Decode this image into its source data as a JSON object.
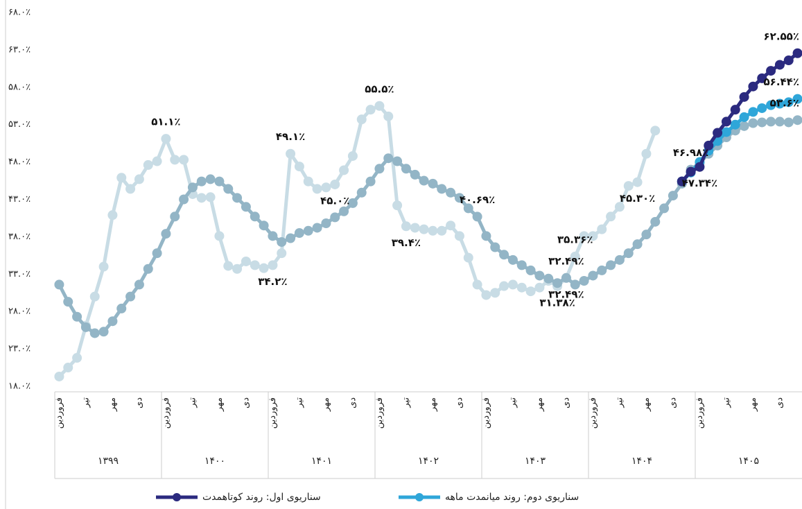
{
  "chart_data": {
    "type": "line",
    "categories": [
      "فروردین",
      null,
      null,
      "تیر",
      null,
      null,
      "مهر",
      null,
      null,
      "دی",
      null,
      null,
      "فروردین",
      null,
      null,
      "تیر",
      null,
      null,
      "مهر",
      null,
      null,
      "دی",
      null,
      null,
      "فروردین",
      null,
      null,
      "تیر",
      null,
      null,
      "مهر",
      null,
      null,
      "دی",
      null,
      null,
      "فروردین",
      null,
      null,
      "تیر",
      null,
      null,
      "مهر",
      null,
      null,
      "دی",
      null,
      null,
      "فروردین",
      null,
      null,
      "تیر",
      null,
      null,
      "مهر",
      null,
      null,
      "دی",
      null,
      null,
      "فروردین",
      null,
      null,
      "تیر",
      null,
      null,
      "مهر",
      null,
      null,
      "دی",
      null,
      null,
      "فروردین",
      null,
      null,
      "تیر",
      null,
      null,
      "مهر",
      null,
      null,
      "دی",
      null,
      null
    ],
    "year_groups": [
      "۱۳۹۹",
      "۱۴۰۰",
      "۱۴۰۱",
      "۱۴۰۲",
      "۱۴۰۳",
      "۱۴۰۴",
      "۱۴۰۵"
    ],
    "series": [
      {
        "color": "#c8dce5",
        "values": [
          19.3,
          20.5,
          21.8,
          26.1,
          30.0,
          34.0,
          40.9,
          45.9,
          44.4,
          45.7,
          47.6,
          48.1,
          51.1,
          48.3,
          48.3,
          43.7,
          43.2,
          43.3,
          38.1,
          34.1,
          33.7,
          34.7,
          34.2,
          33.8,
          34.2,
          35.8,
          49.1,
          47.4,
          45.4,
          44.4,
          44.6,
          45.0,
          46.9,
          48.8,
          53.7,
          55.0,
          55.5,
          54.1,
          42.2,
          39.4,
          39.2,
          39.0,
          38.8,
          38.8,
          39.5,
          38.1,
          35.2,
          31.6,
          30.2,
          30.5,
          31.4,
          31.6,
          31.2,
          30.7,
          31.2,
          32.1,
          31.38,
          32.49,
          35.36,
          38.1,
          38.1,
          39.0,
          40.7,
          42.0,
          44.8,
          45.3,
          49.1,
          52.2,
          null,
          null,
          null,
          null,
          null,
          null,
          null,
          null,
          null,
          null,
          null,
          null,
          null,
          null,
          null,
          null
        ],
        "value_labels": [
          null,
          null,
          null,
          null,
          null,
          null,
          null,
          null,
          null,
          null,
          null,
          null,
          "۵۱.۱٪",
          null,
          null,
          null,
          null,
          null,
          null,
          null,
          null,
          null,
          null,
          null,
          "۳۴.۲٪",
          null,
          "۴۹.۱٪",
          null,
          null,
          null,
          null,
          "۴۵.۰٪",
          null,
          null,
          null,
          null,
          "۵۵.۵٪",
          null,
          null,
          "۳۹.۴٪",
          null,
          null,
          null,
          null,
          null,
          null,
          null,
          null,
          null,
          null,
          null,
          null,
          null,
          null,
          null,
          null,
          "۳۱.۳۸٪",
          "۳۲.۴۹٪",
          "۳۵.۳۶٪",
          null,
          null,
          null,
          null,
          null,
          null,
          "۴۵.۳۰٪",
          null,
          null,
          null,
          null,
          null,
          null,
          null,
          null,
          null,
          null,
          null,
          null,
          null,
          null,
          null,
          null,
          null,
          null
        ]
      },
      {
        "color": "#93b5c6",
        "values": [
          31.6,
          29.3,
          27.3,
          25.9,
          25.1,
          25.3,
          26.7,
          28.4,
          30.0,
          31.6,
          33.7,
          35.8,
          38.4,
          40.7,
          43.0,
          44.6,
          45.4,
          45.7,
          45.4,
          44.4,
          43.2,
          42.0,
          40.7,
          39.5,
          38.1,
          37.3,
          37.8,
          38.5,
          38.8,
          39.2,
          39.8,
          40.6,
          41.4,
          42.5,
          43.9,
          45.4,
          47.1,
          48.5,
          48.1,
          47.1,
          46.3,
          45.5,
          45.1,
          44.4,
          43.9,
          43.2,
          41.8,
          40.69,
          38.1,
          36.6,
          35.6,
          34.9,
          34.2,
          33.5,
          32.8,
          32.4,
          31.8,
          32.49,
          31.6,
          32.1,
          32.8,
          33.5,
          34.2,
          34.9,
          35.8,
          37.0,
          38.3,
          40.0,
          41.8,
          43.5,
          45.1,
          46.98,
          47.9,
          49.1,
          50.2,
          51.3,
          52.2,
          52.8,
          53.2,
          53.3,
          53.4,
          53.4,
          53.3,
          53.6
        ],
        "value_labels": [
          null,
          null,
          null,
          null,
          null,
          null,
          null,
          null,
          null,
          null,
          null,
          null,
          null,
          null,
          null,
          null,
          null,
          null,
          null,
          null,
          null,
          null,
          null,
          null,
          null,
          null,
          null,
          null,
          null,
          null,
          null,
          null,
          null,
          null,
          null,
          null,
          null,
          null,
          null,
          null,
          null,
          null,
          null,
          null,
          null,
          null,
          null,
          "۴۰.۶۹٪",
          null,
          null,
          null,
          null,
          null,
          null,
          null,
          null,
          null,
          "۳۲.۴۹٪",
          null,
          null,
          null,
          null,
          null,
          null,
          null,
          null,
          null,
          null,
          null,
          null,
          null,
          "۴۶.۹۸٪",
          null,
          null,
          null,
          null,
          null,
          null,
          null,
          null,
          null,
          null,
          null,
          "۵۳.۶٪"
        ]
      },
      {
        "name": "سناریوی اول: روند کوتاهمدت",
        "color": "#2b2a7f",
        "values": [
          null,
          null,
          null,
          null,
          null,
          null,
          null,
          null,
          null,
          null,
          null,
          null,
          null,
          null,
          null,
          null,
          null,
          null,
          null,
          null,
          null,
          null,
          null,
          null,
          null,
          null,
          null,
          null,
          null,
          null,
          null,
          null,
          null,
          null,
          null,
          null,
          null,
          null,
          null,
          null,
          null,
          null,
          null,
          null,
          null,
          null,
          null,
          null,
          null,
          null,
          null,
          null,
          null,
          null,
          null,
          null,
          null,
          null,
          null,
          null,
          null,
          null,
          null,
          null,
          null,
          null,
          null,
          null,
          null,
          null,
          45.4,
          46.7,
          47.34,
          50.2,
          51.9,
          53.4,
          55.0,
          56.7,
          58.1,
          59.2,
          60.2,
          61.0,
          61.6,
          62.55
        ],
        "value_labels": [
          null,
          null,
          null,
          null,
          null,
          null,
          null,
          null,
          null,
          null,
          null,
          null,
          null,
          null,
          null,
          null,
          null,
          null,
          null,
          null,
          null,
          null,
          null,
          null,
          null,
          null,
          null,
          null,
          null,
          null,
          null,
          null,
          null,
          null,
          null,
          null,
          null,
          null,
          null,
          null,
          null,
          null,
          null,
          null,
          null,
          null,
          null,
          null,
          null,
          null,
          null,
          null,
          null,
          null,
          null,
          null,
          null,
          null,
          null,
          null,
          null,
          null,
          null,
          null,
          null,
          null,
          null,
          null,
          null,
          null,
          null,
          null,
          "۴۷.۳۴٪",
          null,
          null,
          null,
          null,
          null,
          null,
          null,
          null,
          null,
          null,
          "۶۲.۵۵٪"
        ]
      },
      {
        "name": "سناریوی دوم: روند میانمدت ماهه",
        "color": "#2fa6d9",
        "values": [
          null,
          null,
          null,
          null,
          null,
          null,
          null,
          null,
          null,
          null,
          null,
          null,
          null,
          null,
          null,
          null,
          null,
          null,
          null,
          null,
          null,
          null,
          null,
          null,
          null,
          null,
          null,
          null,
          null,
          null,
          null,
          null,
          null,
          null,
          null,
          null,
          null,
          null,
          null,
          null,
          null,
          null,
          null,
          null,
          null,
          null,
          null,
          null,
          null,
          null,
          null,
          null,
          null,
          null,
          null,
          null,
          null,
          null,
          null,
          null,
          null,
          null,
          null,
          null,
          null,
          null,
          null,
          null,
          null,
          null,
          45.4,
          46.6,
          48.0,
          49.5,
          50.8,
          52.0,
          53.0,
          54.0,
          54.7,
          55.2,
          55.6,
          55.8,
          56.0,
          56.44
        ],
        "value_labels": [
          null,
          null,
          null,
          null,
          null,
          null,
          null,
          null,
          null,
          null,
          null,
          null,
          null,
          null,
          null,
          null,
          null,
          null,
          null,
          null,
          null,
          null,
          null,
          null,
          null,
          null,
          null,
          null,
          null,
          null,
          null,
          null,
          null,
          null,
          null,
          null,
          null,
          null,
          null,
          null,
          null,
          null,
          null,
          null,
          null,
          null,
          null,
          null,
          null,
          null,
          null,
          null,
          null,
          null,
          null,
          null,
          null,
          null,
          null,
          null,
          null,
          null,
          null,
          null,
          null,
          null,
          null,
          null,
          null,
          null,
          null,
          null,
          null,
          null,
          null,
          null,
          null,
          null,
          null,
          null,
          null,
          null,
          null,
          "۵۶.۴۴٪"
        ]
      }
    ],
    "ylim": [
      18,
      68
    ],
    "yticks": [
      {
        "value": 18,
        "label": "۱۸.۰٪"
      },
      {
        "value": 23,
        "label": "۲۳.۰٪"
      },
      {
        "value": 28,
        "label": "۲۸.۰٪"
      },
      {
        "value": 33,
        "label": "۳۳.۰٪"
      },
      {
        "value": 38,
        "label": "۳۸.۰٪"
      },
      {
        "value": 43,
        "label": "۴۳.۰٪"
      },
      {
        "value": 48,
        "label": "۴۸.۰٪"
      },
      {
        "value": 53,
        "label": "۵۳.۰٪"
      },
      {
        "value": 58,
        "label": "۵۸.۰٪"
      },
      {
        "value": 63,
        "label": "۶۳.۰٪"
      },
      {
        "value": 68,
        "label": "۶۸.۰٪"
      }
    ],
    "grid": false
  }
}
